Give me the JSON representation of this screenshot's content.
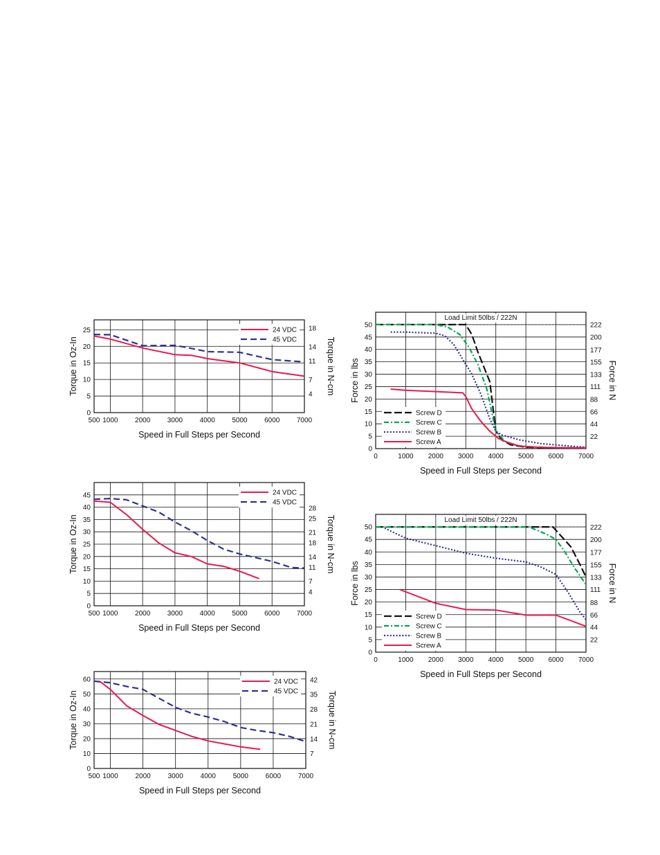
{
  "chart_data": [
    {
      "type": "line",
      "xlabel": "Speed in Full Steps per Second",
      "ylabel": "Torque in Oz-In",
      "y2label": "Torque in N-cm",
      "xticks": [
        500,
        1000,
        2000,
        3000,
        4000,
        5000,
        6000,
        7000
      ],
      "xlim": [
        500,
        7000
      ],
      "yticks": [
        0,
        5,
        10,
        15,
        20,
        25
      ],
      "ylim": [
        0,
        28
      ],
      "y2ticks": [
        4,
        7,
        11,
        14,
        18
      ],
      "y2lim": [
        0,
        19.77
      ],
      "grid": true,
      "legend": "top-right",
      "series": [
        {
          "name": "24 VDC",
          "color": "#e8194b",
          "dash": "solid",
          "x": [
            500,
            1000,
            2000,
            3000,
            3500,
            4000,
            5000,
            6000,
            7000
          ],
          "y": [
            23.1,
            22.2,
            19.5,
            17.5,
            17.3,
            16.3,
            15.0,
            12.4,
            11.0
          ]
        },
        {
          "name": "45 VDC",
          "color": "#2e3192",
          "dash": "dashed",
          "x": [
            500,
            1000,
            2000,
            3000,
            3500,
            4000,
            5000,
            6000,
            7000
          ],
          "y": [
            23.6,
            23.5,
            20.2,
            20.3,
            19.4,
            18.4,
            18.2,
            16.0,
            15.3
          ]
        }
      ]
    },
    {
      "type": "line",
      "xlabel": "Speed in Full Steps per Second",
      "ylabel": "Torque in Oz-In",
      "y2label": "Torque in N-cm",
      "xticks": [
        500,
        1000,
        2000,
        3000,
        4000,
        5000,
        6000,
        7000
      ],
      "xlim": [
        500,
        7000
      ],
      "yticks": [
        0,
        5,
        10,
        15,
        20,
        25,
        30,
        35,
        40,
        45
      ],
      "ylim": [
        0,
        50
      ],
      "y2ticks": [
        4,
        7,
        11,
        14,
        18,
        21,
        25,
        28
      ],
      "y2lim": [
        0,
        35.3
      ],
      "grid": true,
      "legend": "top-right",
      "series": [
        {
          "name": "24 VDC",
          "color": "#e8194b",
          "dash": "solid",
          "x": [
            500,
            1000,
            1500,
            2000,
            2500,
            3000,
            3500,
            4000,
            4500,
            5000,
            5600
          ],
          "y": [
            42.5,
            42.0,
            37.0,
            31.0,
            25.5,
            21.5,
            20.0,
            17.0,
            16.0,
            14.0,
            11.0
          ]
        },
        {
          "name": "45 VDC",
          "color": "#2e3192",
          "dash": "dashed",
          "x": [
            500,
            1000,
            1500,
            2000,
            2500,
            3000,
            3500,
            4000,
            4500,
            5000,
            5500,
            6000,
            6600,
            7000
          ],
          "y": [
            43.2,
            43.5,
            43.0,
            40.5,
            38.0,
            34.0,
            30.5,
            26.5,
            23.0,
            21.0,
            19.5,
            18.0,
            15.5,
            15.3
          ]
        }
      ]
    },
    {
      "type": "line",
      "xlabel": "Speed in Full Steps per Second",
      "ylabel": "Torque in Oz-In",
      "y2label": "Torque in N-cm",
      "xticks": [
        500,
        1000,
        2000,
        3000,
        4000,
        5000,
        6000,
        7000
      ],
      "xlim": [
        500,
        7000
      ],
      "yticks": [
        0,
        10,
        20,
        30,
        40,
        50,
        60
      ],
      "ylim": [
        0,
        65
      ],
      "y2ticks": [
        7,
        14,
        21,
        28,
        35,
        42
      ],
      "y2lim": [
        0,
        45.9
      ],
      "grid": true,
      "legend": "top-right",
      "series": [
        {
          "name": "24 VDC",
          "color": "#e8194b",
          "dash": "solid",
          "x": [
            500,
            700,
            1000,
            1500,
            2000,
            2500,
            3000,
            3500,
            4000,
            4500,
            5000,
            5600
          ],
          "y": [
            58.5,
            58.0,
            53.0,
            42.0,
            35.5,
            29.5,
            25.5,
            21.5,
            18.5,
            16.5,
            14.5,
            12.8
          ]
        },
        {
          "name": "45 VDC",
          "color": "#2e3192",
          "dash": "dashed",
          "x": [
            500,
            1000,
            1500,
            2000,
            2500,
            3000,
            3500,
            4000,
            4500,
            5000,
            5500,
            6000,
            6500,
            7000
          ],
          "y": [
            58.6,
            57.5,
            55.0,
            53.0,
            47.0,
            41.0,
            37.0,
            34.5,
            31.5,
            27.5,
            25.5,
            24.0,
            21.5,
            18.0
          ]
        }
      ]
    },
    {
      "type": "line",
      "title": "Load Limit 50lbs / 222N",
      "xlabel": "Speed in Full Steps per Second",
      "ylabel": "Force in lbs",
      "y2label": "Force in N",
      "xticks": [
        0,
        1000,
        2000,
        3000,
        4000,
        5000,
        6000,
        7000
      ],
      "xlim": [
        0,
        7000
      ],
      "yticks": [
        0,
        5,
        10,
        15,
        20,
        25,
        30,
        35,
        40,
        45,
        50
      ],
      "ylim": [
        0,
        55
      ],
      "y2ticks": [
        22,
        44,
        66,
        88,
        111,
        133,
        155,
        177,
        200,
        222
      ],
      "y2lim": [
        0,
        244.6
      ],
      "load_limit": 50,
      "grid": true,
      "legend": "bottom-left",
      "series": [
        {
          "name": "Screw D",
          "color": "#111111",
          "dash": "longdash",
          "x": [
            0,
            2800,
            3000,
            3200,
            3400,
            3600,
            3800,
            4000,
            4200,
            4500,
            5000,
            6000,
            7000
          ],
          "y": [
            50,
            50,
            50,
            46,
            39,
            33,
            27,
            7,
            3.5,
            1.5,
            0.6,
            0.3,
            0.3
          ]
        },
        {
          "name": "Screw C",
          "color": "#00a651",
          "dash": "dashdot",
          "x": [
            0,
            1700,
            2000,
            2400,
            2800,
            3100,
            3400,
            3700,
            4000,
            4300,
            4600,
            5000,
            6000,
            7000
          ],
          "y": [
            50,
            50,
            50,
            49,
            46,
            41,
            34,
            24,
            7,
            3,
            1.5,
            0.8,
            0.4,
            0.3
          ]
        },
        {
          "name": "Screw B",
          "color": "#2e3192",
          "dash": "dotted",
          "x": [
            500,
            1000,
            2000,
            2300,
            2600,
            2900,
            3200,
            3500,
            3800,
            4000,
            4200,
            4800,
            5500,
            6500,
            7000
          ],
          "y": [
            47,
            47,
            46.5,
            45.5,
            42,
            36,
            30,
            22,
            12,
            7,
            5.5,
            3.5,
            2,
            1,
            0.5
          ]
        },
        {
          "name": "Screw A",
          "color": "#e8194b",
          "dash": "solid",
          "x": [
            500,
            1000,
            2000,
            2900,
            3000,
            3200,
            3500,
            3800,
            4100,
            4400,
            4800,
            5500,
            6500,
            7000
          ],
          "y": [
            24,
            23.5,
            23,
            22.5,
            21,
            16,
            11,
            7,
            4,
            2.5,
            1,
            0.5,
            0.3,
            0.3
          ]
        }
      ]
    },
    {
      "type": "line",
      "title": "Load Limit 50lbs / 222N",
      "xlabel": "Speed in Full Steps per Second",
      "ylabel": "Force in lbs",
      "y2label": "Force in N",
      "xticks": [
        0,
        1000,
        2000,
        3000,
        4000,
        5000,
        6000,
        7000
      ],
      "xlim": [
        0,
        7000
      ],
      "yticks": [
        0,
        5,
        10,
        15,
        20,
        25,
        30,
        35,
        40,
        45,
        50
      ],
      "ylim": [
        0,
        55
      ],
      "y2ticks": [
        22,
        44,
        66,
        88,
        111,
        133,
        155,
        177,
        200,
        222
      ],
      "y2lim": [
        0,
        244.6
      ],
      "load_limit": 50,
      "grid": true,
      "legend": "bottom-left",
      "series": [
        {
          "name": "Screw D",
          "color": "#111111",
          "dash": "longdash",
          "x": [
            0,
            5900,
            6200,
            6500,
            6800,
            7000
          ],
          "y": [
            50,
            50,
            46,
            42,
            35,
            30
          ]
        },
        {
          "name": "Screw C",
          "color": "#00a651",
          "dash": "dashdot",
          "x": [
            0,
            5100,
            5700,
            6000,
            6300,
            6600,
            7000
          ],
          "y": [
            50,
            50,
            47,
            45,
            40,
            34,
            27
          ]
        },
        {
          "name": "Screw B",
          "color": "#2e3192",
          "dash": "dotted",
          "x": [
            300,
            1000,
            2000,
            3000,
            4000,
            5000,
            5500,
            6000,
            6400,
            6800,
            7000
          ],
          "y": [
            49.5,
            45.5,
            42.5,
            39.5,
            37.5,
            36.0,
            34.0,
            31.0,
            24.0,
            16.0,
            13.0
          ]
        },
        {
          "name": "Screw A",
          "color": "#e8194b",
          "dash": "solid",
          "x": [
            800,
            2000,
            3000,
            4000,
            5000,
            6000,
            7000
          ],
          "y": [
            25,
            19.5,
            17.0,
            16.8,
            14.8,
            14.8,
            10.3
          ]
        }
      ]
    }
  ]
}
